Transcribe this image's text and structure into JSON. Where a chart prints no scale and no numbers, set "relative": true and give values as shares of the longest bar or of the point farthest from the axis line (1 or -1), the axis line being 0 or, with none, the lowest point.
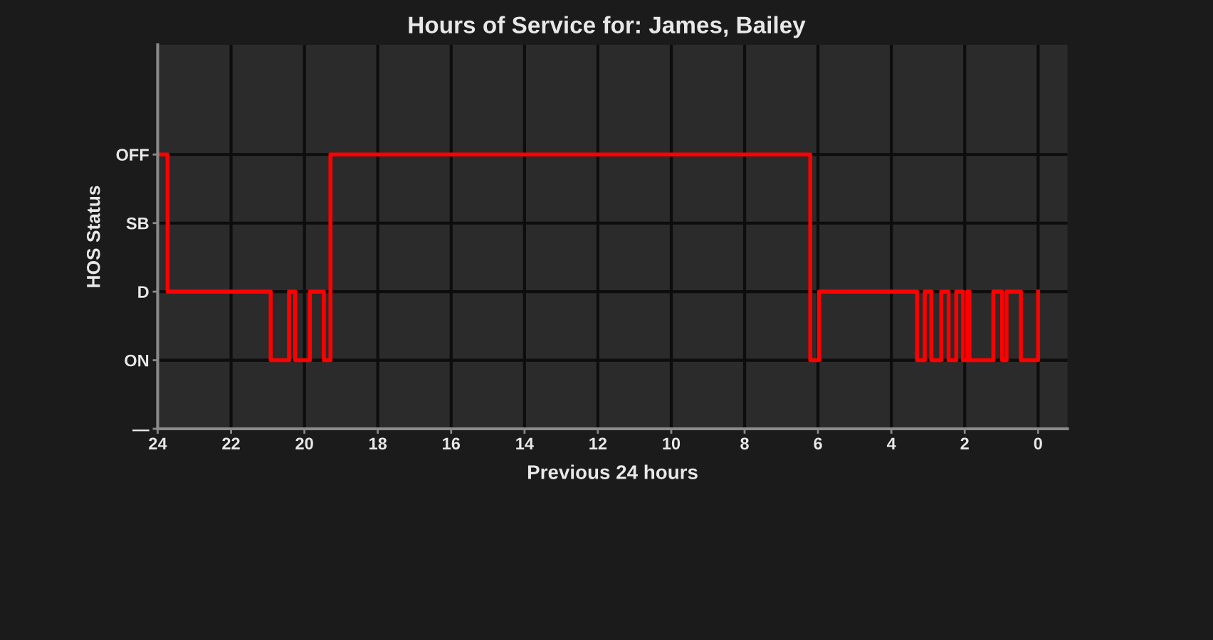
{
  "chart_data": {
    "type": "step",
    "title": "Hours of Service for: James, Bailey",
    "xlabel": "Previous 24 hours",
    "ylabel": "HOS Status",
    "x": [
      24,
      23.73,
      20.92,
      20.42,
      20.25,
      19.85,
      19.47,
      19.29,
      6.21,
      5.97,
      3.3,
      3.09,
      2.91,
      2.64,
      2.44,
      2.23,
      2.05,
      1.93,
      1.87,
      1.22,
      0.98,
      0.86,
      0.47,
      0
    ],
    "series": [
      {
        "color": "#ff0000",
        "values": [
          1,
          0.5,
          0.25,
          0.5,
          0.25,
          0.5,
          0.25,
          1,
          0.25,
          0.5,
          0.25,
          0.5,
          0.25,
          0.5,
          0.25,
          0.5,
          0.25,
          0.5,
          0.25,
          0.5,
          0.25,
          0.5,
          0.25,
          0.5
        ]
      }
    ],
    "relative": true,
    "y_categories": [
      "OFF",
      "SB",
      "D",
      "ON",
      "—"
    ],
    "xlim": [
      24,
      -0.8
    ],
    "xticks": [
      24,
      22,
      20,
      18,
      16,
      14,
      12,
      10,
      8,
      6,
      4,
      2,
      0
    ],
    "grid": true,
    "marker": "none",
    "line_style": "solid"
  }
}
